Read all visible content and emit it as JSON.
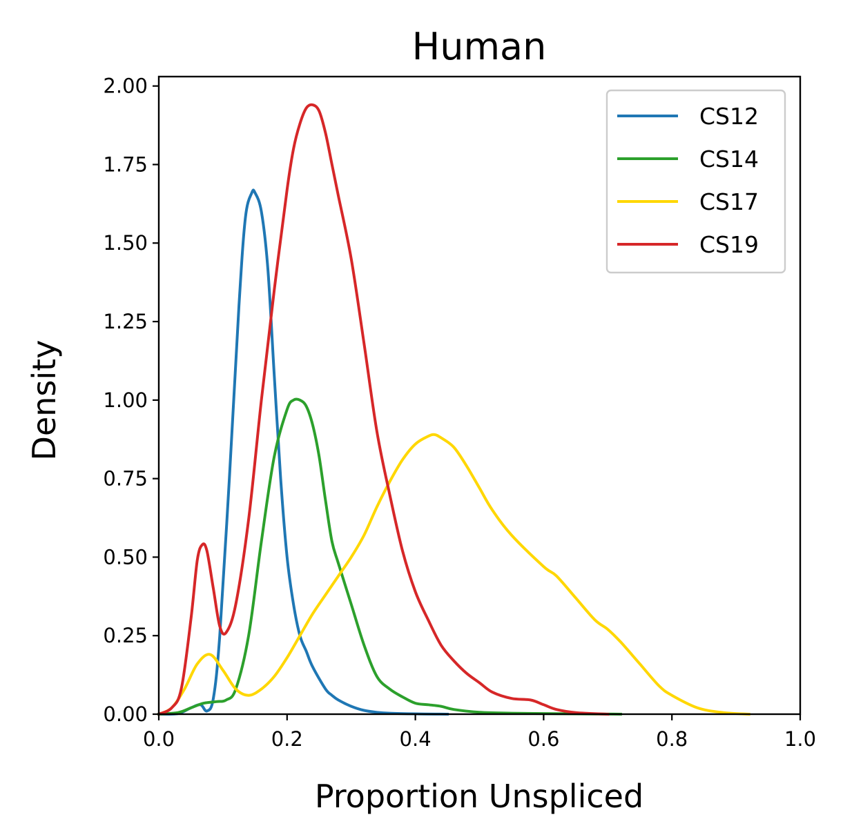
{
  "chart_data": {
    "type": "line",
    "title": "Human",
    "xlabel": "Proportion Unspliced",
    "ylabel": "Density",
    "xlim": [
      0.0,
      1.0
    ],
    "ylim": [
      0.0,
      2.03
    ],
    "xticks": [
      "0.0",
      "0.2",
      "0.4",
      "0.6",
      "0.8",
      "1.0"
    ],
    "yticks": [
      "0.00",
      "0.25",
      "0.50",
      "0.75",
      "1.00",
      "1.25",
      "1.50",
      "1.75",
      "2.00"
    ],
    "grid": false,
    "legend_position": "top-right",
    "series": [
      {
        "name": "CS12",
        "color": "#1f77b4",
        "x": [
          0.0,
          0.03,
          0.05,
          0.065,
          0.075,
          0.085,
          0.095,
          0.11,
          0.125,
          0.135,
          0.145,
          0.15,
          0.16,
          0.17,
          0.18,
          0.19,
          0.2,
          0.21,
          0.22,
          0.23,
          0.24,
          0.26,
          0.27,
          0.28,
          0.3,
          0.32,
          0.34,
          0.36,
          0.4,
          0.45
        ],
        "y": [
          0.0,
          0.002,
          0.02,
          0.03,
          0.01,
          0.05,
          0.25,
          0.75,
          1.3,
          1.58,
          1.66,
          1.66,
          1.6,
          1.42,
          1.08,
          0.75,
          0.5,
          0.35,
          0.25,
          0.2,
          0.15,
          0.08,
          0.06,
          0.045,
          0.025,
          0.012,
          0.006,
          0.003,
          0.001,
          0.0
        ]
      },
      {
        "name": "CS14",
        "color": "#2ca02c",
        "x": [
          0.0,
          0.03,
          0.05,
          0.07,
          0.09,
          0.105,
          0.12,
          0.14,
          0.16,
          0.18,
          0.2,
          0.21,
          0.22,
          0.23,
          0.24,
          0.25,
          0.26,
          0.27,
          0.28,
          0.3,
          0.32,
          0.34,
          0.36,
          0.38,
          0.4,
          0.42,
          0.44,
          0.46,
          0.5,
          0.55,
          0.6,
          0.65,
          0.72
        ],
        "y": [
          0.0,
          0.005,
          0.02,
          0.035,
          0.04,
          0.045,
          0.08,
          0.25,
          0.55,
          0.82,
          0.97,
          1.0,
          1.0,
          0.98,
          0.92,
          0.82,
          0.68,
          0.55,
          0.48,
          0.35,
          0.22,
          0.12,
          0.08,
          0.055,
          0.035,
          0.03,
          0.025,
          0.015,
          0.006,
          0.003,
          0.002,
          0.001,
          0.0
        ]
      },
      {
        "name": "CS17",
        "color": "#ffd700",
        "x": [
          0.0,
          0.02,
          0.04,
          0.06,
          0.08,
          0.1,
          0.12,
          0.14,
          0.16,
          0.18,
          0.2,
          0.22,
          0.24,
          0.26,
          0.28,
          0.3,
          0.32,
          0.34,
          0.36,
          0.38,
          0.4,
          0.42,
          0.43,
          0.44,
          0.46,
          0.48,
          0.5,
          0.52,
          0.55,
          0.6,
          0.62,
          0.65,
          0.68,
          0.7,
          0.72,
          0.75,
          0.78,
          0.8,
          0.84,
          0.88,
          0.92
        ],
        "y": [
          0.0,
          0.02,
          0.08,
          0.16,
          0.19,
          0.14,
          0.08,
          0.06,
          0.08,
          0.12,
          0.18,
          0.25,
          0.32,
          0.38,
          0.44,
          0.5,
          0.57,
          0.66,
          0.74,
          0.81,
          0.86,
          0.885,
          0.89,
          0.88,
          0.85,
          0.79,
          0.72,
          0.65,
          0.57,
          0.47,
          0.44,
          0.37,
          0.3,
          0.27,
          0.23,
          0.16,
          0.09,
          0.06,
          0.02,
          0.005,
          0.0
        ]
      },
      {
        "name": "CS19",
        "color": "#d62728",
        "x": [
          0.0,
          0.02,
          0.035,
          0.05,
          0.06,
          0.068,
          0.075,
          0.085,
          0.095,
          0.105,
          0.12,
          0.14,
          0.16,
          0.18,
          0.2,
          0.21,
          0.22,
          0.23,
          0.24,
          0.25,
          0.26,
          0.27,
          0.28,
          0.3,
          0.32,
          0.34,
          0.36,
          0.38,
          0.4,
          0.42,
          0.44,
          0.46,
          0.48,
          0.5,
          0.52,
          0.55,
          0.58,
          0.6,
          0.62,
          0.65,
          0.7
        ],
        "y": [
          0.0,
          0.02,
          0.08,
          0.3,
          0.49,
          0.54,
          0.52,
          0.4,
          0.28,
          0.26,
          0.35,
          0.62,
          1.0,
          1.35,
          1.67,
          1.8,
          1.88,
          1.93,
          1.94,
          1.92,
          1.85,
          1.75,
          1.65,
          1.45,
          1.18,
          0.9,
          0.7,
          0.52,
          0.39,
          0.3,
          0.22,
          0.17,
          0.13,
          0.1,
          0.07,
          0.05,
          0.045,
          0.03,
          0.015,
          0.005,
          0.0
        ]
      }
    ]
  }
}
